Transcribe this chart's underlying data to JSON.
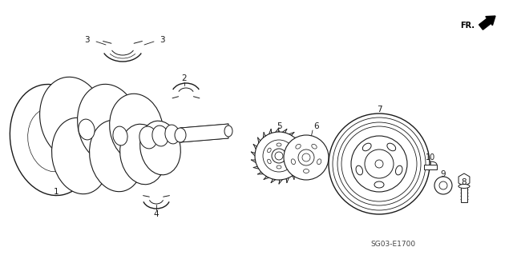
{
  "bg_color": "#ffffff",
  "line_color": "#1a1a1a",
  "figsize": [
    6.4,
    3.19
  ],
  "dpi": 100,
  "diagram_code": "SG03-E1700",
  "fr_label": "FR.",
  "lw": 0.7,
  "lw_thick": 1.0
}
